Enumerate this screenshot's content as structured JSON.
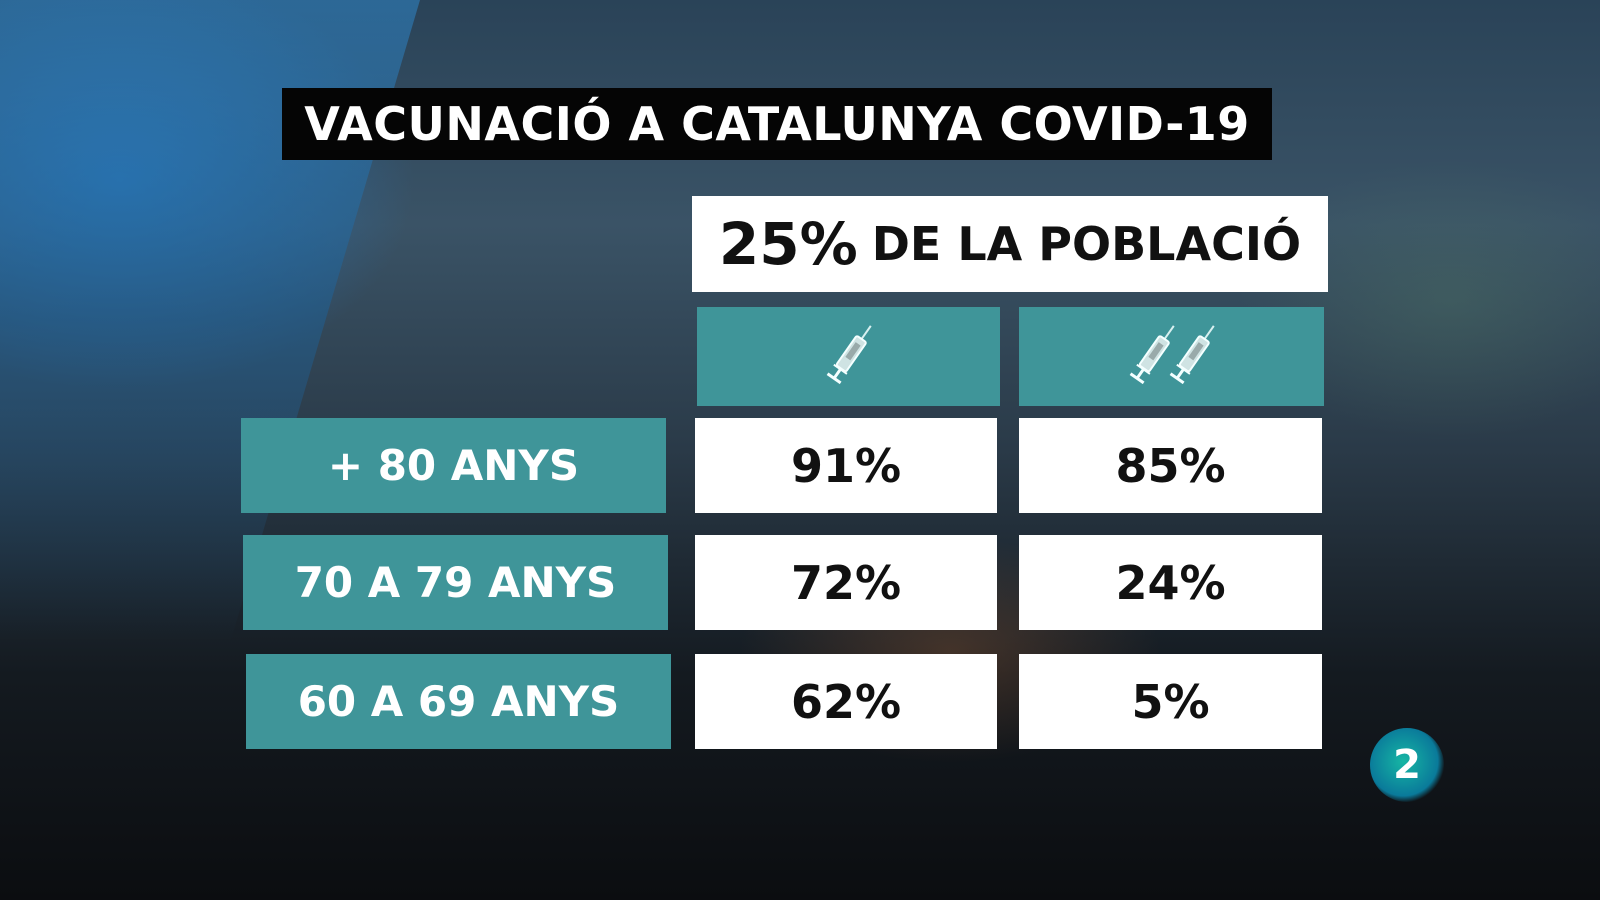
{
  "title": "VACUNACIÓ A CATALUNYA COVID-19",
  "subtitle": {
    "percent": "25%",
    "text": "DE LA POBLACIÓ"
  },
  "columns": [
    {
      "icon": "syringe-icon",
      "doses": 1
    },
    {
      "icon": "two-syringes-icon",
      "doses": 2
    }
  ],
  "rows": [
    {
      "label": "+ 80 ANYS",
      "dose1": "91%",
      "dose2": "85%"
    },
    {
      "label": "70 A 79 ANYS",
      "dose1": "72%",
      "dose2": "24%"
    },
    {
      "label": "60 A 69 ANYS",
      "dose1": "62%",
      "dose2": "5%"
    }
  ],
  "logo": "2",
  "colors": {
    "teal": "#3f9599",
    "title_bg": "#050505",
    "cell_bg": "#ffffff"
  }
}
